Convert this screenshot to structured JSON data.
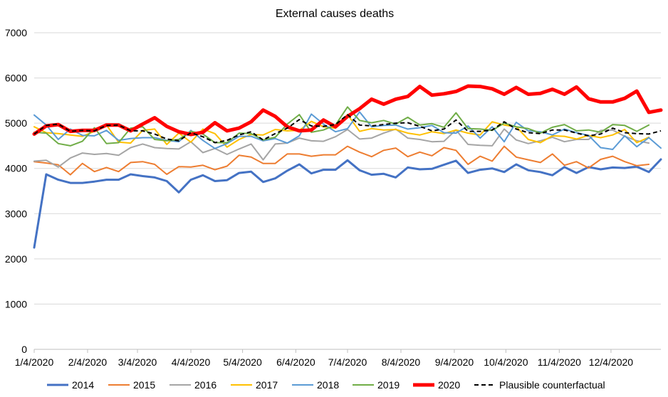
{
  "chart_data": {
    "type": "line",
    "title": "External causes deaths",
    "xlabel": "",
    "ylabel": "",
    "ylim": [
      0,
      7000
    ],
    "yticks": [
      0,
      1000,
      2000,
      3000,
      4000,
      5000,
      6000,
      7000
    ],
    "grid": "horizontal",
    "legend_position": "bottom",
    "x_tick_labels": [
      "1/4/2020",
      "2/4/2020",
      "3/4/2020",
      "4/4/2020",
      "5/4/2020",
      "6/4/2020",
      "7/4/2020",
      "8/4/2020",
      "9/4/2020",
      "10/4/2020",
      "11/4/2020",
      "12/4/2020"
    ],
    "x_tick_weeks": [
      0,
      4.43,
      8.57,
      13,
      17.29,
      21.71,
      26,
      30.43,
      34.86,
      39.14,
      43.57,
      47.86
    ],
    "x_count": 53,
    "series": [
      {
        "name": "2014",
        "color": "#4472c4",
        "width": 3,
        "dash": "",
        "values": [
          2250,
          3870,
          3750,
          3680,
          3680,
          3710,
          3750,
          3750,
          3870,
          3830,
          3800,
          3720,
          3470,
          3750,
          3850,
          3720,
          3740,
          3900,
          3930,
          3700,
          3780,
          3950,
          4090,
          3890,
          3970,
          3970,
          4180,
          3960,
          3860,
          3880,
          3800,
          4020,
          3980,
          3990,
          4080,
          4170,
          3900,
          3970,
          4000,
          3920,
          4090,
          3960,
          3920,
          3850,
          4030,
          3900,
          4030,
          3980,
          4020,
          4010,
          4040,
          3920,
          4200
        ]
      },
      {
        "name": "2015",
        "color": "#ed7d31",
        "width": 2,
        "dash": "",
        "values": [
          4150,
          4120,
          4080,
          3860,
          4110,
          3930,
          4020,
          3930,
          4130,
          4150,
          4090,
          3870,
          4040,
          4030,
          4070,
          3970,
          4050,
          4290,
          4250,
          4110,
          4110,
          4320,
          4320,
          4270,
          4300,
          4300,
          4490,
          4360,
          4260,
          4400,
          4450,
          4260,
          4360,
          4280,
          4460,
          4400,
          4090,
          4270,
          4160,
          4490,
          4250,
          4190,
          4130,
          4320,
          4070,
          4150,
          4010,
          4200,
          4270,
          4150,
          4060,
          4090,
          null
        ]
      },
      {
        "name": "2016",
        "color": "#a5a5a5",
        "width": 2,
        "dash": "",
        "values": [
          4160,
          4180,
          4030,
          4230,
          4340,
          4310,
          4330,
          4290,
          4460,
          4540,
          4460,
          4440,
          4430,
          4590,
          4350,
          4440,
          4310,
          4430,
          4540,
          4190,
          4540,
          4560,
          4670,
          4610,
          4600,
          4700,
          4860,
          4650,
          4670,
          4780,
          4870,
          4670,
          4640,
          4590,
          4600,
          4850,
          4530,
          4510,
          4500,
          4870,
          4630,
          4550,
          4610,
          4690,
          4590,
          4640,
          4640,
          4840,
          4850,
          4710,
          4610,
          4560,
          null
        ]
      },
      {
        "name": "2017",
        "color": "#ffc000",
        "width": 2,
        "dash": "",
        "values": [
          4920,
          4790,
          4770,
          4740,
          4710,
          4820,
          4960,
          4580,
          4560,
          4840,
          4870,
          4530,
          4780,
          4580,
          4870,
          4770,
          4470,
          4640,
          4750,
          4740,
          4860,
          4830,
          4840,
          5040,
          4920,
          4890,
          5190,
          4820,
          4880,
          4850,
          4860,
          4780,
          4740,
          4810,
          4770,
          4850,
          4780,
          4740,
          5030,
          4960,
          4920,
          4640,
          4570,
          4720,
          4710,
          4650,
          4730,
          4680,
          4740,
          4860,
          4570,
          4690,
          null
        ]
      },
      {
        "name": "2018",
        "color": "#5b9bd5",
        "width": 2,
        "dash": "",
        "values": [
          5180,
          4960,
          4640,
          4870,
          4730,
          4720,
          4840,
          4620,
          4660,
          4680,
          4680,
          4620,
          4590,
          4840,
          4620,
          4440,
          4550,
          4710,
          4710,
          4610,
          4660,
          4560,
          4720,
          5200,
          4980,
          4810,
          4880,
          5250,
          4920,
          4950,
          4960,
          4870,
          4900,
          4950,
          4790,
          4780,
          4940,
          4670,
          4920,
          4590,
          5020,
          4830,
          4810,
          4740,
          4870,
          4790,
          4730,
          4460,
          4420,
          4720,
          4480,
          4680,
          4450
        ]
      },
      {
        "name": "2019",
        "color": "#70ad47",
        "width": 2,
        "dash": "",
        "values": [
          4800,
          4780,
          4550,
          4500,
          4600,
          4900,
          4550,
          4570,
          4890,
          4920,
          4640,
          4610,
          4640,
          4820,
          4760,
          4570,
          4570,
          4780,
          4770,
          4630,
          4690,
          4980,
          5190,
          4800,
          4850,
          4960,
          5360,
          5060,
          5010,
          5060,
          4980,
          5130,
          4960,
          4990,
          4910,
          5230,
          4880,
          4870,
          4840,
          5000,
          4920,
          4880,
          4780,
          4910,
          4970,
          4830,
          4850,
          4800,
          4970,
          4950,
          4820,
          4960,
          null
        ]
      },
      {
        "name": "2020",
        "color": "#ff0000",
        "width": 5,
        "dash": "",
        "values": [
          4760,
          4940,
          4970,
          4820,
          4840,
          4840,
          4960,
          4960,
          4830,
          4980,
          5120,
          4930,
          4810,
          4750,
          4800,
          5010,
          4830,
          4890,
          5030,
          5290,
          5150,
          4920,
          4830,
          4850,
          5070,
          4920,
          5150,
          5320,
          5530,
          5420,
          5530,
          5590,
          5810,
          5620,
          5650,
          5700,
          5820,
          5810,
          5760,
          5640,
          5790,
          5640,
          5660,
          5750,
          5640,
          5800,
          5540,
          5470,
          5470,
          5550,
          5710,
          5240,
          5290
        ]
      },
      {
        "name": "Plausible counterfactual",
        "color": "#000000",
        "width": 2,
        "dash": "6,4",
        "values": [
          4760,
          4950,
          4980,
          4820,
          4840,
          4830,
          4950,
          4960,
          4830,
          4830,
          4760,
          4650,
          4610,
          4790,
          4700,
          4570,
          4620,
          4740,
          4810,
          4630,
          4770,
          4890,
          5080,
          4940,
          4930,
          4970,
          5190,
          4960,
          4940,
          4970,
          5000,
          5010,
          4930,
          4830,
          4870,
          5070,
          4820,
          4820,
          4850,
          5030,
          4870,
          4790,
          4770,
          4850,
          4850,
          4780,
          4720,
          4760,
          4890,
          4790,
          4770,
          4760,
          4830
        ]
      }
    ]
  }
}
